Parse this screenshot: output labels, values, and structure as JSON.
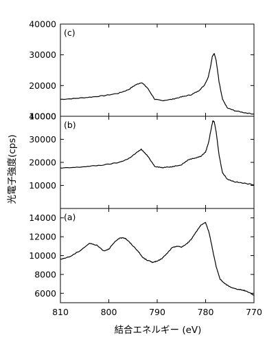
{
  "chart_data": [
    {
      "type": "line",
      "panel": "(c)",
      "xlabel": "結合エネルギー (eV)",
      "ylabel": "光電子強度(cps)",
      "xlim": [
        810,
        770
      ],
      "x_reversed": true,
      "ylim": [
        10000,
        40000
      ],
      "yticks": [
        10000,
        20000,
        30000,
        40000
      ],
      "ytick_labels": [
        "10000",
        "20000",
        "30000",
        "40000"
      ],
      "xticks": [
        810,
        800,
        790,
        780,
        770
      ],
      "series": [
        {
          "x": [
            810,
            807,
            804,
            801,
            798,
            796,
            794.5,
            793.2,
            792,
            790.5,
            789,
            787,
            785,
            783,
            781.5,
            780.3,
            779.5,
            779,
            778.6,
            778.2,
            777.8,
            777.2,
            776.5,
            775.5,
            774,
            772,
            770
          ],
          "values": [
            15500,
            15800,
            16200,
            16700,
            17500,
            18600,
            20200,
            21000,
            19200,
            15500,
            15100,
            15500,
            16300,
            17000,
            18200,
            20000,
            22500,
            26000,
            29500,
            30500,
            28000,
            21000,
            15500,
            12700,
            11800,
            11200,
            10700
          ]
        }
      ]
    },
    {
      "type": "line",
      "panel": "(b)",
      "xlim": [
        810,
        770
      ],
      "x_reversed": true,
      "ylim": [
        0,
        40000
      ],
      "yticks": [
        10000,
        20000,
        30000,
        40000
      ],
      "ytick_labels": [
        "10000",
        "20000",
        "30000",
        "40000"
      ],
      "xticks": [
        810,
        800,
        790,
        780,
        770
      ],
      "series": [
        {
          "x": [
            810,
            807,
            804,
            801,
            798,
            796,
            794.5,
            793.3,
            792,
            790.5,
            789,
            787,
            785,
            783.5,
            782,
            781,
            780,
            779.4,
            778.9,
            778.5,
            778.2,
            777.8,
            777.2,
            776.5,
            775.5,
            774,
            772,
            770
          ],
          "values": [
            17500,
            17800,
            18300,
            18900,
            19900,
            21500,
            23800,
            25700,
            22800,
            18300,
            17700,
            18100,
            19000,
            21200,
            22000,
            22600,
            24500,
            28500,
            34000,
            38000,
            37500,
            33000,
            23000,
            15500,
            12700,
            11600,
            10900,
            10300
          ]
        }
      ]
    },
    {
      "type": "line",
      "panel": "(a)",
      "xlim": [
        810,
        770
      ],
      "x_reversed": true,
      "ylim": [
        5000,
        15000
      ],
      "yticks": [
        6000,
        8000,
        10000,
        12000,
        14000
      ],
      "ytick_labels": [
        "6000",
        "8000",
        "10000",
        "12000",
        "14000"
      ],
      "xticks": [
        810,
        800,
        790,
        780,
        770
      ],
      "xtick_labels": [
        "810",
        "800",
        "790",
        "780",
        "770"
      ],
      "series": [
        {
          "x": [
            810,
            808,
            806,
            804,
            802.5,
            801,
            800,
            799,
            798,
            797,
            796.5,
            795.5,
            794,
            793,
            792,
            791,
            790,
            789,
            788,
            787,
            786,
            785,
            784,
            783,
            782,
            781,
            780,
            779.3,
            778.5,
            777.8,
            777,
            776,
            775,
            774,
            773,
            772,
            771,
            770
          ],
          "values": [
            9600,
            9900,
            10500,
            11300,
            11100,
            10500,
            10700,
            11300,
            11800,
            11900,
            11800,
            11300,
            10500,
            9800,
            9500,
            9300,
            9400,
            9700,
            10200,
            10800,
            11000,
            10900,
            11200,
            11700,
            12500,
            13200,
            13500,
            12500,
            10500,
            8800,
            7500,
            7000,
            6700,
            6500,
            6400,
            6300,
            6100,
            5800
          ]
        }
      ]
    }
  ]
}
